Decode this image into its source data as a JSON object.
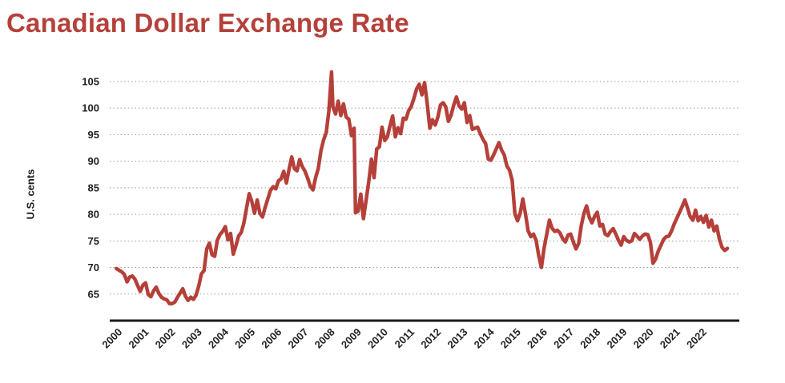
{
  "title": "Canadian Dollar Exchange Rate",
  "chart_data": {
    "type": "line",
    "title": "Canadian Dollar Exchange Rate",
    "xlabel": "",
    "ylabel": "U.S. cents",
    "ylim": [
      60,
      108
    ],
    "xlim": [
      1999.75,
      2023.45
    ],
    "y_ticks": [
      65,
      70,
      75,
      80,
      85,
      90,
      95,
      100,
      105
    ],
    "x_ticks": [
      "2000",
      "2001",
      "2002",
      "2003",
      "2004",
      "2005",
      "2006",
      "2007",
      "2008",
      "2009",
      "2010",
      "2011",
      "2012",
      "2013",
      "2014",
      "2015",
      "2016",
      "2017",
      "2018",
      "2019",
      "2020",
      "2021",
      "2022"
    ],
    "grid": "horizontal-dotted",
    "line_color": "#b5403a",
    "series": [
      {
        "name": "",
        "points": [
          [
            2000.0,
            69.8
          ],
          [
            2000.1,
            69.5
          ],
          [
            2000.2,
            69.2
          ],
          [
            2000.3,
            68.7
          ],
          [
            2000.4,
            67.3
          ],
          [
            2000.5,
            68.2
          ],
          [
            2000.6,
            68.4
          ],
          [
            2000.7,
            67.8
          ],
          [
            2000.8,
            66.6
          ],
          [
            2000.9,
            65.5
          ],
          [
            2001.0,
            66.7
          ],
          [
            2001.1,
            67.1
          ],
          [
            2001.2,
            64.9
          ],
          [
            2001.3,
            64.5
          ],
          [
            2001.4,
            65.6
          ],
          [
            2001.5,
            66.3
          ],
          [
            2001.6,
            65.1
          ],
          [
            2001.7,
            64.4
          ],
          [
            2001.8,
            64.1
          ],
          [
            2001.9,
            63.9
          ],
          [
            2002.0,
            63.2
          ],
          [
            2002.1,
            63.2
          ],
          [
            2002.2,
            63.5
          ],
          [
            2002.3,
            64.4
          ],
          [
            2002.4,
            65.2
          ],
          [
            2002.5,
            66.0
          ],
          [
            2002.6,
            64.6
          ],
          [
            2002.7,
            63.8
          ],
          [
            2002.8,
            64.4
          ],
          [
            2002.9,
            64.0
          ],
          [
            2003.0,
            64.8
          ],
          [
            2003.1,
            66.5
          ],
          [
            2003.2,
            68.8
          ],
          [
            2003.3,
            69.4
          ],
          [
            2003.4,
            73.5
          ],
          [
            2003.5,
            74.6
          ],
          [
            2003.6,
            72.4
          ],
          [
            2003.7,
            72.1
          ],
          [
            2003.8,
            75.1
          ],
          [
            2003.9,
            76.2
          ],
          [
            2004.0,
            76.8
          ],
          [
            2004.1,
            77.7
          ],
          [
            2004.2,
            75.2
          ],
          [
            2004.3,
            76.4
          ],
          [
            2004.4,
            72.5
          ],
          [
            2004.5,
            74.1
          ],
          [
            2004.6,
            75.9
          ],
          [
            2004.7,
            76.6
          ],
          [
            2004.8,
            78.4
          ],
          [
            2004.9,
            81.2
          ],
          [
            2005.0,
            83.9
          ],
          [
            2005.1,
            82.4
          ],
          [
            2005.2,
            80.2
          ],
          [
            2005.3,
            82.7
          ],
          [
            2005.4,
            80.2
          ],
          [
            2005.5,
            79.5
          ],
          [
            2005.6,
            81.3
          ],
          [
            2005.7,
            82.9
          ],
          [
            2005.8,
            84.5
          ],
          [
            2005.9,
            85.2
          ],
          [
            2006.0,
            84.8
          ],
          [
            2006.1,
            86.3
          ],
          [
            2006.2,
            86.7
          ],
          [
            2006.3,
            88.1
          ],
          [
            2006.4,
            85.9
          ],
          [
            2006.5,
            88.5
          ],
          [
            2006.6,
            90.8
          ],
          [
            2006.7,
            88.6
          ],
          [
            2006.8,
            88.2
          ],
          [
            2006.9,
            90.3
          ],
          [
            2007.0,
            89.0
          ],
          [
            2007.1,
            88.1
          ],
          [
            2007.2,
            86.8
          ],
          [
            2007.3,
            85.3
          ],
          [
            2007.4,
            84.6
          ],
          [
            2007.5,
            86.9
          ],
          [
            2007.6,
            88.6
          ],
          [
            2007.7,
            92.0
          ],
          [
            2007.8,
            94.0
          ],
          [
            2007.9,
            95.4
          ],
          [
            2008.0,
            99.5
          ],
          [
            2008.1,
            106.8
          ],
          [
            2008.15,
            100.2
          ],
          [
            2008.25,
            98.9
          ],
          [
            2008.35,
            101.3
          ],
          [
            2008.45,
            98.6
          ],
          [
            2008.55,
            100.8
          ],
          [
            2008.65,
            98.3
          ],
          [
            2008.75,
            97.9
          ],
          [
            2008.85,
            94.8
          ],
          [
            2008.95,
            96.2
          ],
          [
            2009.0,
            80.3
          ],
          [
            2009.1,
            80.6
          ],
          [
            2009.2,
            83.8
          ],
          [
            2009.3,
            79.2
          ],
          [
            2009.4,
            82.6
          ],
          [
            2009.5,
            86.2
          ],
          [
            2009.6,
            90.4
          ],
          [
            2009.7,
            86.9
          ],
          [
            2009.8,
            92.3
          ],
          [
            2009.9,
            92.7
          ],
          [
            2010.0,
            96.4
          ],
          [
            2010.1,
            93.9
          ],
          [
            2010.2,
            94.6
          ],
          [
            2010.3,
            96.7
          ],
          [
            2010.4,
            98.5
          ],
          [
            2010.5,
            94.6
          ],
          [
            2010.6,
            96.3
          ],
          [
            2010.7,
            95.2
          ],
          [
            2010.8,
            98.1
          ],
          [
            2010.9,
            97.9
          ],
          [
            2011.0,
            99.5
          ],
          [
            2011.1,
            100.3
          ],
          [
            2011.2,
            101.8
          ],
          [
            2011.3,
            103.6
          ],
          [
            2011.4,
            104.5
          ],
          [
            2011.5,
            102.5
          ],
          [
            2011.6,
            104.8
          ],
          [
            2011.7,
            100.9
          ],
          [
            2011.8,
            96.2
          ],
          [
            2011.9,
            97.8
          ],
          [
            2012.0,
            96.8
          ],
          [
            2012.1,
            98.3
          ],
          [
            2012.2,
            100.6
          ],
          [
            2012.3,
            101.0
          ],
          [
            2012.4,
            100.2
          ],
          [
            2012.5,
            97.5
          ],
          [
            2012.6,
            98.7
          ],
          [
            2012.7,
            100.6
          ],
          [
            2012.8,
            102.1
          ],
          [
            2012.9,
            100.4
          ],
          [
            2013.0,
            99.8
          ],
          [
            2013.1,
            101.0
          ],
          [
            2013.2,
            97.3
          ],
          [
            2013.3,
            98.6
          ],
          [
            2013.4,
            96.0
          ],
          [
            2013.5,
            96.2
          ],
          [
            2013.6,
            96.4
          ],
          [
            2013.7,
            95.2
          ],
          [
            2013.8,
            94.1
          ],
          [
            2013.9,
            93.3
          ],
          [
            2014.0,
            90.4
          ],
          [
            2014.1,
            90.2
          ],
          [
            2014.2,
            91.2
          ],
          [
            2014.3,
            92.3
          ],
          [
            2014.4,
            93.5
          ],
          [
            2014.5,
            92.1
          ],
          [
            2014.6,
            91.2
          ],
          [
            2014.7,
            89.1
          ],
          [
            2014.8,
            88.3
          ],
          [
            2014.9,
            86.4
          ],
          [
            2015.0,
            80.1
          ],
          [
            2015.1,
            78.8
          ],
          [
            2015.2,
            80.2
          ],
          [
            2015.3,
            82.9
          ],
          [
            2015.4,
            80.1
          ],
          [
            2015.5,
            76.9
          ],
          [
            2015.6,
            75.8
          ],
          [
            2015.7,
            76.3
          ],
          [
            2015.8,
            75.1
          ],
          [
            2015.9,
            72.2
          ],
          [
            2016.0,
            70.0
          ],
          [
            2016.1,
            73.6
          ],
          [
            2016.2,
            76.3
          ],
          [
            2016.3,
            78.9
          ],
          [
            2016.4,
            77.4
          ],
          [
            2016.5,
            76.8
          ],
          [
            2016.6,
            77.0
          ],
          [
            2016.7,
            76.5
          ],
          [
            2016.8,
            75.4
          ],
          [
            2016.9,
            74.8
          ],
          [
            2017.0,
            76.1
          ],
          [
            2017.1,
            76.3
          ],
          [
            2017.2,
            74.8
          ],
          [
            2017.3,
            73.5
          ],
          [
            2017.4,
            74.5
          ],
          [
            2017.5,
            77.9
          ],
          [
            2017.6,
            80.2
          ],
          [
            2017.7,
            81.6
          ],
          [
            2017.8,
            79.5
          ],
          [
            2017.9,
            78.4
          ],
          [
            2018.0,
            79.6
          ],
          [
            2018.1,
            80.4
          ],
          [
            2018.2,
            77.8
          ],
          [
            2018.3,
            78.1
          ],
          [
            2018.4,
            76.3
          ],
          [
            2018.5,
            76.0
          ],
          [
            2018.6,
            76.8
          ],
          [
            2018.7,
            77.3
          ],
          [
            2018.8,
            76.3
          ],
          [
            2018.9,
            75.1
          ],
          [
            2019.0,
            74.2
          ],
          [
            2019.1,
            75.8
          ],
          [
            2019.2,
            75.1
          ],
          [
            2019.3,
            74.8
          ],
          [
            2019.4,
            75.0
          ],
          [
            2019.5,
            76.4
          ],
          [
            2019.6,
            75.9
          ],
          [
            2019.7,
            75.3
          ],
          [
            2019.8,
            75.9
          ],
          [
            2019.9,
            76.3
          ],
          [
            2020.0,
            76.2
          ],
          [
            2020.1,
            74.8
          ],
          [
            2020.2,
            70.8
          ],
          [
            2020.3,
            71.6
          ],
          [
            2020.4,
            73.1
          ],
          [
            2020.5,
            74.2
          ],
          [
            2020.6,
            75.3
          ],
          [
            2020.7,
            75.8
          ],
          [
            2020.8,
            75.9
          ],
          [
            2020.9,
            76.9
          ],
          [
            2021.0,
            78.2
          ],
          [
            2021.1,
            79.3
          ],
          [
            2021.2,
            80.4
          ],
          [
            2021.3,
            81.5
          ],
          [
            2021.4,
            82.7
          ],
          [
            2021.5,
            81.2
          ],
          [
            2021.6,
            79.6
          ],
          [
            2021.7,
            78.9
          ],
          [
            2021.8,
            80.8
          ],
          [
            2021.9,
            78.8
          ],
          [
            2022.0,
            79.6
          ],
          [
            2022.1,
            78.5
          ],
          [
            2022.2,
            79.8
          ],
          [
            2022.3,
            77.6
          ],
          [
            2022.4,
            78.9
          ],
          [
            2022.5,
            76.9
          ],
          [
            2022.6,
            77.8
          ],
          [
            2022.7,
            75.3
          ],
          [
            2022.8,
            73.8
          ],
          [
            2022.9,
            73.2
          ],
          [
            2023.0,
            73.6
          ]
        ]
      }
    ]
  }
}
